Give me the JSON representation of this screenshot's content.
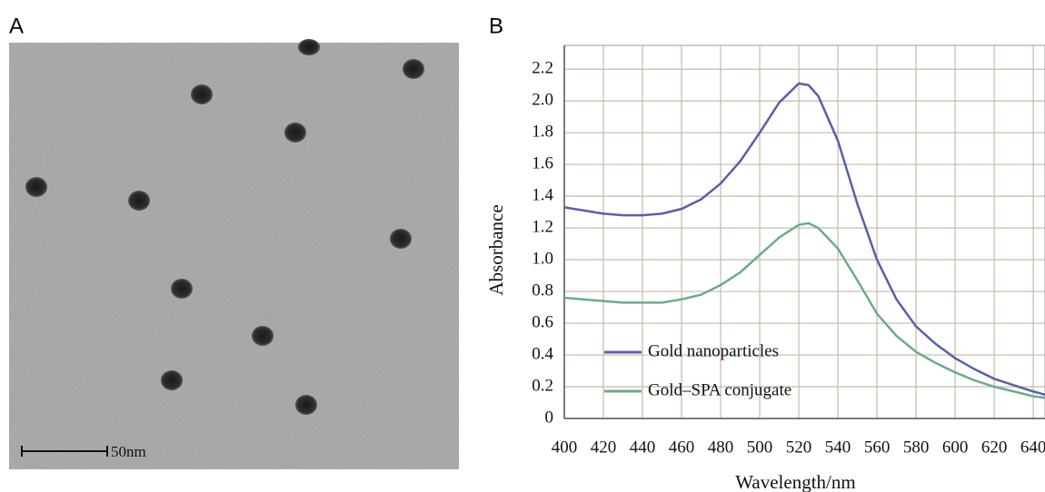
{
  "figure": {
    "label_a": "A",
    "label_b": "B",
    "scale_bar": "50nm"
  },
  "chart_data": {
    "type": "line",
    "xlabel": "Wavelength/nm",
    "ylabel": "Absorbance",
    "x": [
      400,
      410,
      420,
      430,
      440,
      450,
      460,
      470,
      480,
      490,
      500,
      510,
      520,
      525,
      530,
      540,
      550,
      560,
      570,
      580,
      590,
      600,
      610,
      620,
      630,
      640,
      646
    ],
    "series": [
      {
        "name": "Gold nanoparticles",
        "color": "#5a5fa8",
        "values": [
          1.33,
          1.31,
          1.29,
          1.28,
          1.28,
          1.29,
          1.32,
          1.38,
          1.48,
          1.62,
          1.8,
          1.99,
          2.11,
          2.1,
          2.03,
          1.75,
          1.35,
          1.0,
          0.75,
          0.58,
          0.47,
          0.38,
          0.31,
          0.25,
          0.21,
          0.17,
          0.15
        ]
      },
      {
        "name": "Gold–SPA conjugate",
        "color": "#6aab8e",
        "values": [
          0.76,
          0.75,
          0.74,
          0.73,
          0.73,
          0.73,
          0.75,
          0.78,
          0.84,
          0.92,
          1.03,
          1.14,
          1.22,
          1.23,
          1.2,
          1.07,
          0.87,
          0.66,
          0.52,
          0.42,
          0.35,
          0.29,
          0.24,
          0.2,
          0.17,
          0.14,
          0.13
        ]
      }
    ],
    "xlim": [
      400,
      646
    ],
    "xticks": [
      400,
      420,
      440,
      460,
      480,
      500,
      520,
      540,
      560,
      580,
      600,
      620,
      640
    ],
    "ylim": [
      0,
      2.35
    ],
    "yticks": [
      0,
      0.2,
      0.4,
      0.6,
      0.8,
      {
        "value": 1,
        "label": "1.0"
      },
      1.2,
      1.4,
      1.6,
      1.8,
      {
        "value": 2,
        "label": "2.0"
      },
      2.2
    ],
    "grid": true
  }
}
